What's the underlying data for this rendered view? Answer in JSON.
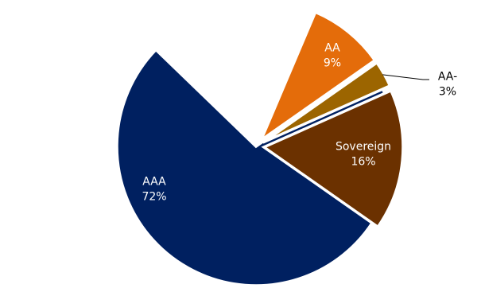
{
  "chart_data": {
    "type": "pie",
    "title": "",
    "slices": [
      {
        "label": "AAA",
        "value": 72,
        "value_label": "72%",
        "color": "#002060",
        "label_color": "#ffffff",
        "exploded": false,
        "start_angle_deg": 136,
        "sweep_deg": 259
      },
      {
        "label": "AA",
        "value": 9,
        "value_label": "9%",
        "color": "#e46c0a",
        "label_color": "#ffffff",
        "exploded": true,
        "start_angle_deg": 35,
        "sweep_deg": 32
      },
      {
        "label": "AA-",
        "value": 3,
        "value_label": "3%",
        "color": "#9c6500",
        "label_color": "#000000",
        "exploded": true,
        "start_angle_deg": 24,
        "sweep_deg": 11,
        "label_outside": true
      },
      {
        "label": "Sovereign",
        "value": 16,
        "value_label": "16%",
        "color": "#6b3100",
        "label_color": "#ffffff",
        "exploded": true,
        "start_angle_deg": -35,
        "sweep_deg": 59
      }
    ]
  }
}
